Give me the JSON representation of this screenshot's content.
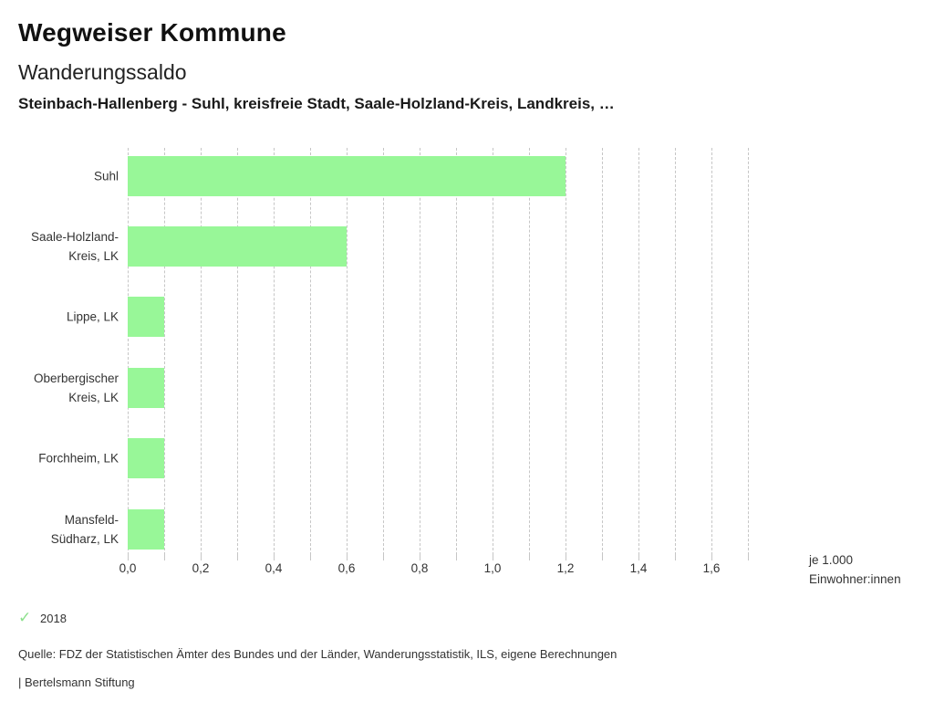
{
  "header": {
    "title": "Wegweiser Kommune",
    "subtitle": "Wanderungssaldo",
    "selection": "Steinbach-Hallenberg - Suhl, kreisfreie Stadt, Saale-Holzland-Kreis, Landkreis, …"
  },
  "chart_data": {
    "type": "bar",
    "orientation": "horizontal",
    "title": "Wanderungssaldo",
    "categories": [
      "Suhl",
      "Saale-Holzland-Kreis, LK",
      "Lippe, LK",
      "Oberbergischer Kreis, LK",
      "Forchheim, LK",
      "Mansfeld-Südharz, LK"
    ],
    "category_lines": [
      [
        "Suhl"
      ],
      [
        "Saale-Holzland-",
        "Kreis, LK"
      ],
      [
        "Lippe, LK"
      ],
      [
        "Oberbergischer",
        "Kreis, LK"
      ],
      [
        "Forchheim, LK"
      ],
      [
        "Mansfeld-",
        "Südharz, LK"
      ]
    ],
    "values": [
      1.2,
      0.6,
      0.1,
      0.1,
      0.1,
      0.1
    ],
    "year": "2018",
    "xlim": [
      0,
      1.7
    ],
    "x_major_ticks": [
      0,
      0.2,
      0.4,
      0.6,
      0.8,
      1.0,
      1.2,
      1.4,
      1.6
    ],
    "x_tick_labels": [
      "0,0",
      "0,2",
      "0,4",
      "0,6",
      "0,8",
      "1,0",
      "1,2",
      "1,4",
      "1,6"
    ],
    "x_minor_step": 0.1,
    "unit_label": [
      "je 1.000",
      "Einwohner:innen"
    ],
    "grid": true,
    "legend_position": "bottom-left"
  },
  "colors": {
    "bar_green": "#98f798",
    "check_green": "#8ce08c",
    "grid_gray": "#c6c6c6"
  },
  "footer": {
    "source": "Quelle: FDZ der Statistischen Ämter des Bundes und der Länder, Wanderungsstatistik, ILS, eigene Berechnungen",
    "attribution": "| Bertelsmann Stiftung"
  }
}
